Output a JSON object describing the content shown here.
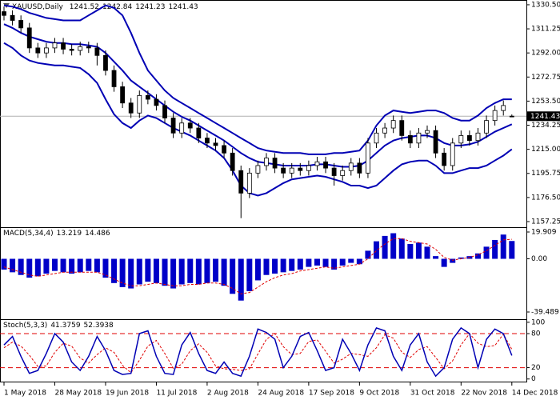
{
  "chart_data": [
    {
      "type": "candlestick",
      "title": "XAUUSD,Daily",
      "categories": [
        "1 May 2018",
        null,
        null,
        null,
        null,
        null,
        "28 May 2018",
        null,
        null,
        null,
        null,
        null,
        "19 Jun 2018",
        null,
        null,
        null,
        null,
        null,
        "11 Jul 2018",
        null,
        null,
        null,
        null,
        null,
        "2 Aug 2018",
        null,
        null,
        null,
        null,
        null,
        "24 Aug 2018",
        null,
        null,
        null,
        null,
        null,
        "17 Sep 2018",
        null,
        null,
        null,
        null,
        null,
        "9 Oct 2018",
        null,
        null,
        null,
        null,
        null,
        "31 Oct 2018",
        null,
        null,
        null,
        null,
        null,
        "22 Nov 2018",
        null,
        null,
        null,
        null,
        null,
        "14 Dec 2018"
      ],
      "open": [
        1325,
        1322,
        1318,
        1312,
        1296,
        1292,
        1296,
        1300,
        1295,
        1294,
        1297,
        1296,
        1290,
        1278,
        1265,
        1252,
        1244,
        1258,
        1255,
        1250,
        1240,
        1228,
        1236,
        1232,
        1224,
        1220,
        1218,
        1212,
        1198,
        1180,
        1196,
        1202,
        1208,
        1200,
        1196,
        1200,
        1198,
        1202,
        1205,
        1200,
        1194,
        1198,
        1204,
        1196,
        1220,
        1228,
        1232,
        1238,
        1226,
        1220,
        1228,
        1230,
        1212,
        1202,
        1220,
        1226,
        1222,
        1228,
        1238,
        1246,
        1241.52
      ],
      "high": [
        1329,
        1326,
        1322,
        1316,
        1300,
        1300,
        1304,
        1304,
        1299,
        1301,
        1301,
        1300,
        1294,
        1282,
        1269,
        1256,
        1262,
        1262,
        1259,
        1254,
        1244,
        1240,
        1240,
        1236,
        1228,
        1224,
        1222,
        1216,
        1202,
        1200,
        1206,
        1212,
        1212,
        1204,
        1204,
        1204,
        1206,
        1209,
        1209,
        1204,
        1202,
        1208,
        1208,
        1224,
        1232,
        1236,
        1242,
        1242,
        1230,
        1232,
        1234,
        1234,
        1216,
        1224,
        1230,
        1230,
        1232,
        1242,
        1250,
        1254,
        1242.84
      ],
      "low": [
        1318,
        1314,
        1308,
        1292,
        1288,
        1288,
        1292,
        1291,
        1290,
        1290,
        1292,
        1282,
        1274,
        1261,
        1248,
        1240,
        1240,
        1251,
        1246,
        1236,
        1224,
        1224,
        1228,
        1220,
        1216,
        1214,
        1208,
        1194,
        1160,
        1176,
        1192,
        1198,
        1196,
        1192,
        1192,
        1194,
        1194,
        1198,
        1196,
        1186,
        1190,
        1194,
        1192,
        1192,
        1216,
        1224,
        1228,
        1222,
        1216,
        1216,
        1224,
        1208,
        1198,
        1198,
        1216,
        1218,
        1218,
        1224,
        1234,
        1242,
        1241.23
      ],
      "close": [
        1322,
        1318,
        1312,
        1296,
        1292,
        1296,
        1300,
        1295,
        1294,
        1297,
        1296,
        1290,
        1278,
        1265,
        1252,
        1244,
        1258,
        1255,
        1250,
        1240,
        1228,
        1236,
        1232,
        1224,
        1220,
        1218,
        1212,
        1198,
        1180,
        1196,
        1202,
        1208,
        1200,
        1196,
        1200,
        1198,
        1202,
        1205,
        1200,
        1194,
        1198,
        1204,
        1196,
        1220,
        1228,
        1232,
        1238,
        1226,
        1220,
        1228,
        1230,
        1212,
        1202,
        1220,
        1226,
        1222,
        1228,
        1238,
        1246,
        1250,
        1241.43
      ],
      "bands": {
        "color": "#0000b4",
        "upper": [
          1330,
          1329,
          1327,
          1324,
          1322,
          1320,
          1319,
          1318,
          1318,
          1318,
          1322,
          1326,
          1330,
          1328,
          1322,
          1308,
          1292,
          1278,
          1270,
          1262,
          1256,
          1252,
          1248,
          1244,
          1240,
          1236,
          1232,
          1228,
          1224,
          1220,
          1216,
          1214,
          1213,
          1212,
          1212,
          1212,
          1211,
          1211,
          1211,
          1212,
          1212,
          1213,
          1214,
          1222,
          1234,
          1242,
          1246,
          1245,
          1244,
          1245,
          1246,
          1246,
          1244,
          1240,
          1238,
          1238,
          1242,
          1248,
          1252,
          1255,
          1255
        ],
        "middle": [
          1315,
          1312,
          1308,
          1305,
          1303,
          1301,
          1300,
          1300,
          1299,
          1299,
          1298,
          1297,
          1292,
          1285,
          1278,
          1270,
          1265,
          1260,
          1255,
          1250,
          1245,
          1241,
          1238,
          1234,
          1230,
          1226,
          1222,
          1217,
          1212,
          1208,
          1205,
          1204,
          1203,
          1202,
          1202,
          1202,
          1202,
          1203,
          1203,
          1202,
          1201,
          1201,
          1202,
          1206,
          1212,
          1218,
          1222,
          1224,
          1225,
          1226,
          1226,
          1224,
          1220,
          1218,
          1218,
          1219,
          1221,
          1225,
          1229,
          1232,
          1235
        ],
        "lower": [
          1300,
          1296,
          1290,
          1286,
          1284,
          1283,
          1282,
          1282,
          1281,
          1280,
          1275,
          1268,
          1255,
          1243,
          1236,
          1232,
          1238,
          1242,
          1240,
          1236,
          1232,
          1229,
          1226,
          1222,
          1218,
          1214,
          1208,
          1198,
          1186,
          1180,
          1178,
          1180,
          1184,
          1188,
          1191,
          1192,
          1193,
          1194,
          1193,
          1191,
          1189,
          1186,
          1186,
          1184,
          1186,
          1192,
          1198,
          1203,
          1205,
          1206,
          1206,
          1202,
          1196,
          1196,
          1198,
          1200,
          1200,
          1202,
          1206,
          1210,
          1215
        ]
      },
      "ylim": [
        1153.4,
        1334.3
      ],
      "yticks": [
        1157.25,
        {
          "value": 1176.5,
          "label": "1176.50"
        },
        {
          "value": 1195.75,
          "label": "1195.75"
        },
        {
          "value": 1215,
          "label": "1215.00"
        },
        {
          "value": 1234.25,
          "label": "1234.25"
        },
        {
          "value": 1253.5,
          "label": "1253.50"
        },
        {
          "value": 1272.75,
          "label": "1272.75"
        },
        {
          "value": 1292,
          "label": "1292.00"
        },
        1311.25,
        {
          "value": 1330.5,
          "label": "1330.50"
        }
      ]
    },
    {
      "type": "macd",
      "title": "MACD(5,34,4)",
      "series": [
        {
          "color": "#0000c8",
          "values": [
            -8,
            -10,
            -12,
            -14,
            -13,
            -11,
            -9,
            -10,
            -11,
            -10,
            -9,
            -10,
            -14,
            -18,
            -21,
            -22,
            -19,
            -17,
            -18,
            -20,
            -22,
            -19,
            -18,
            -19,
            -18,
            -17,
            -20,
            -26,
            -31,
            -24,
            -16,
            -12,
            -11,
            -10,
            -9,
            -8,
            -6,
            -5,
            -6,
            -8,
            -5,
            -3,
            -4,
            6,
            13,
            17,
            19,
            15,
            11,
            12,
            9,
            2,
            -6,
            -3,
            1,
            2,
            4,
            9,
            14,
            18,
            13.219
          ]
        },
        {
          "color": "#e00000",
          "values": [
            -6,
            -8,
            -10,
            -12,
            -13,
            -12,
            -11,
            -10,
            -10,
            -10,
            -10,
            -10,
            -12,
            -15,
            -18,
            -20,
            -20,
            -19,
            -18,
            -19,
            -20,
            -20,
            -19,
            -19,
            -18,
            -18,
            -19,
            -22,
            -26,
            -25,
            -21,
            -17,
            -14,
            -12,
            -11,
            -9,
            -8,
            -7,
            -6,
            -7,
            -6,
            -5,
            -4,
            0,
            6,
            11,
            15,
            15,
            13,
            12,
            11,
            7,
            1,
            -1,
            0,
            1,
            3,
            6,
            10,
            14,
            14.486
          ]
        }
      ],
      "ylim": [
        -44.24,
        22.28
      ],
      "yticks": [
        19.909,
        {
          "value": 0,
          "label": "0.00"
        },
        -39.489
      ]
    },
    {
      "type": "stochastic",
      "title": "Stoch(5,3,3)",
      "series": [
        {
          "color": "#0000b4",
          "values": [
            60,
            75,
            40,
            10,
            15,
            45,
            80,
            65,
            30,
            15,
            40,
            75,
            50,
            15,
            8,
            10,
            80,
            85,
            40,
            10,
            8,
            60,
            82,
            45,
            15,
            10,
            30,
            10,
            5,
            40,
            88,
            82,
            70,
            20,
            40,
            75,
            82,
            50,
            15,
            20,
            70,
            45,
            15,
            60,
            90,
            85,
            40,
            15,
            60,
            80,
            30,
            5,
            20,
            70,
            90,
            80,
            20,
            70,
            88,
            80,
            41.3759
          ]
        },
        {
          "color": "#e00000",
          "values": [
            55,
            65,
            58,
            42,
            22,
            23,
            47,
            63,
            58,
            37,
            28,
            43,
            55,
            47,
            24,
            11,
            33,
            58,
            68,
            45,
            19,
            26,
            50,
            62,
            47,
            23,
            18,
            17,
            15,
            18,
            44,
            70,
            80,
            57,
            43,
            45,
            66,
            69,
            49,
            28,
            35,
            45,
            43,
            40,
            55,
            78,
            72,
            47,
            38,
            52,
            57,
            38,
            18,
            32,
            60,
            80,
            63,
            57,
            59,
            79,
            52.3938
          ]
        }
      ],
      "levels": [
        80,
        20
      ],
      "level_color": "#e00000",
      "ylim": [
        -6,
        104
      ],
      "yticks": [
        100,
        80,
        20,
        0
      ]
    }
  ]
}
